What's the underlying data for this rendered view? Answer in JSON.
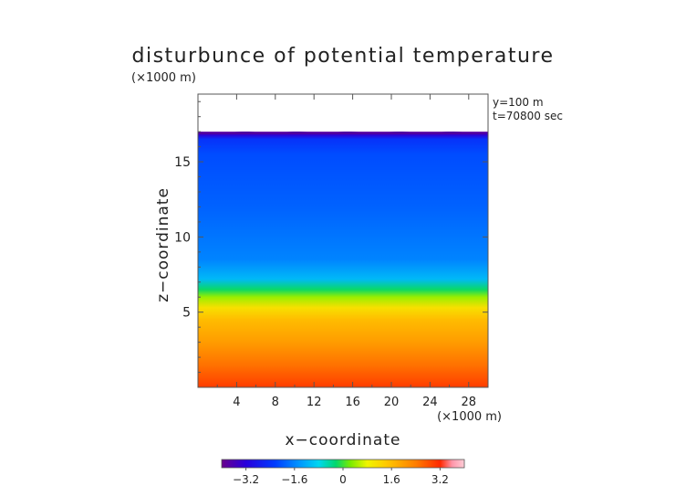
{
  "chart_data": {
    "type": "heatmap",
    "title": "disturbunce of potential temperature",
    "y_unit_label": "(×1000 m)",
    "x_unit_label": "(×1000 m)",
    "xlabel": "x−coordinate",
    "ylabel": "z−coordinate",
    "annotations": [
      "y=100 m",
      "t=70800 sec"
    ],
    "xlim": [
      0,
      30
    ],
    "ylim": [
      0,
      19.5
    ],
    "x_ticks": [
      4,
      8,
      12,
      16,
      20,
      24,
      28
    ],
    "x_tick_labels": [
      "4",
      "8",
      "12",
      "16",
      "20",
      "24",
      "28"
    ],
    "y_ticks": [
      5,
      10,
      15
    ],
    "y_tick_labels": [
      "5",
      "10",
      "15"
    ],
    "colorbar": {
      "range": [
        -4,
        4
      ],
      "ticks": [
        -3.2,
        -1.6,
        0,
        1.6,
        3.2
      ],
      "tick_labels": [
        "−3.2",
        "−1.6",
        "0",
        "1.6",
        "3.2"
      ]
    },
    "data_top_z": 17,
    "profile": [
      {
        "z": 0,
        "value": 3.0
      },
      {
        "z": 1.5,
        "value": 2.5
      },
      {
        "z": 3.0,
        "value": 2.0
      },
      {
        "z": 4.5,
        "value": 1.6
      },
      {
        "z": 5.3,
        "value": 1.1
      },
      {
        "z": 6.0,
        "value": 0.4
      },
      {
        "z": 6.5,
        "value": -0.2
      },
      {
        "z": 7.2,
        "value": -1.1
      },
      {
        "z": 8.5,
        "value": -1.6
      },
      {
        "z": 12.0,
        "value": -1.9
      },
      {
        "z": 15.5,
        "value": -2.1
      },
      {
        "z": 16.5,
        "value": -2.4
      },
      {
        "z": 16.8,
        "value": -3.3
      },
      {
        "z": 17.0,
        "value": -3.9
      }
    ]
  }
}
